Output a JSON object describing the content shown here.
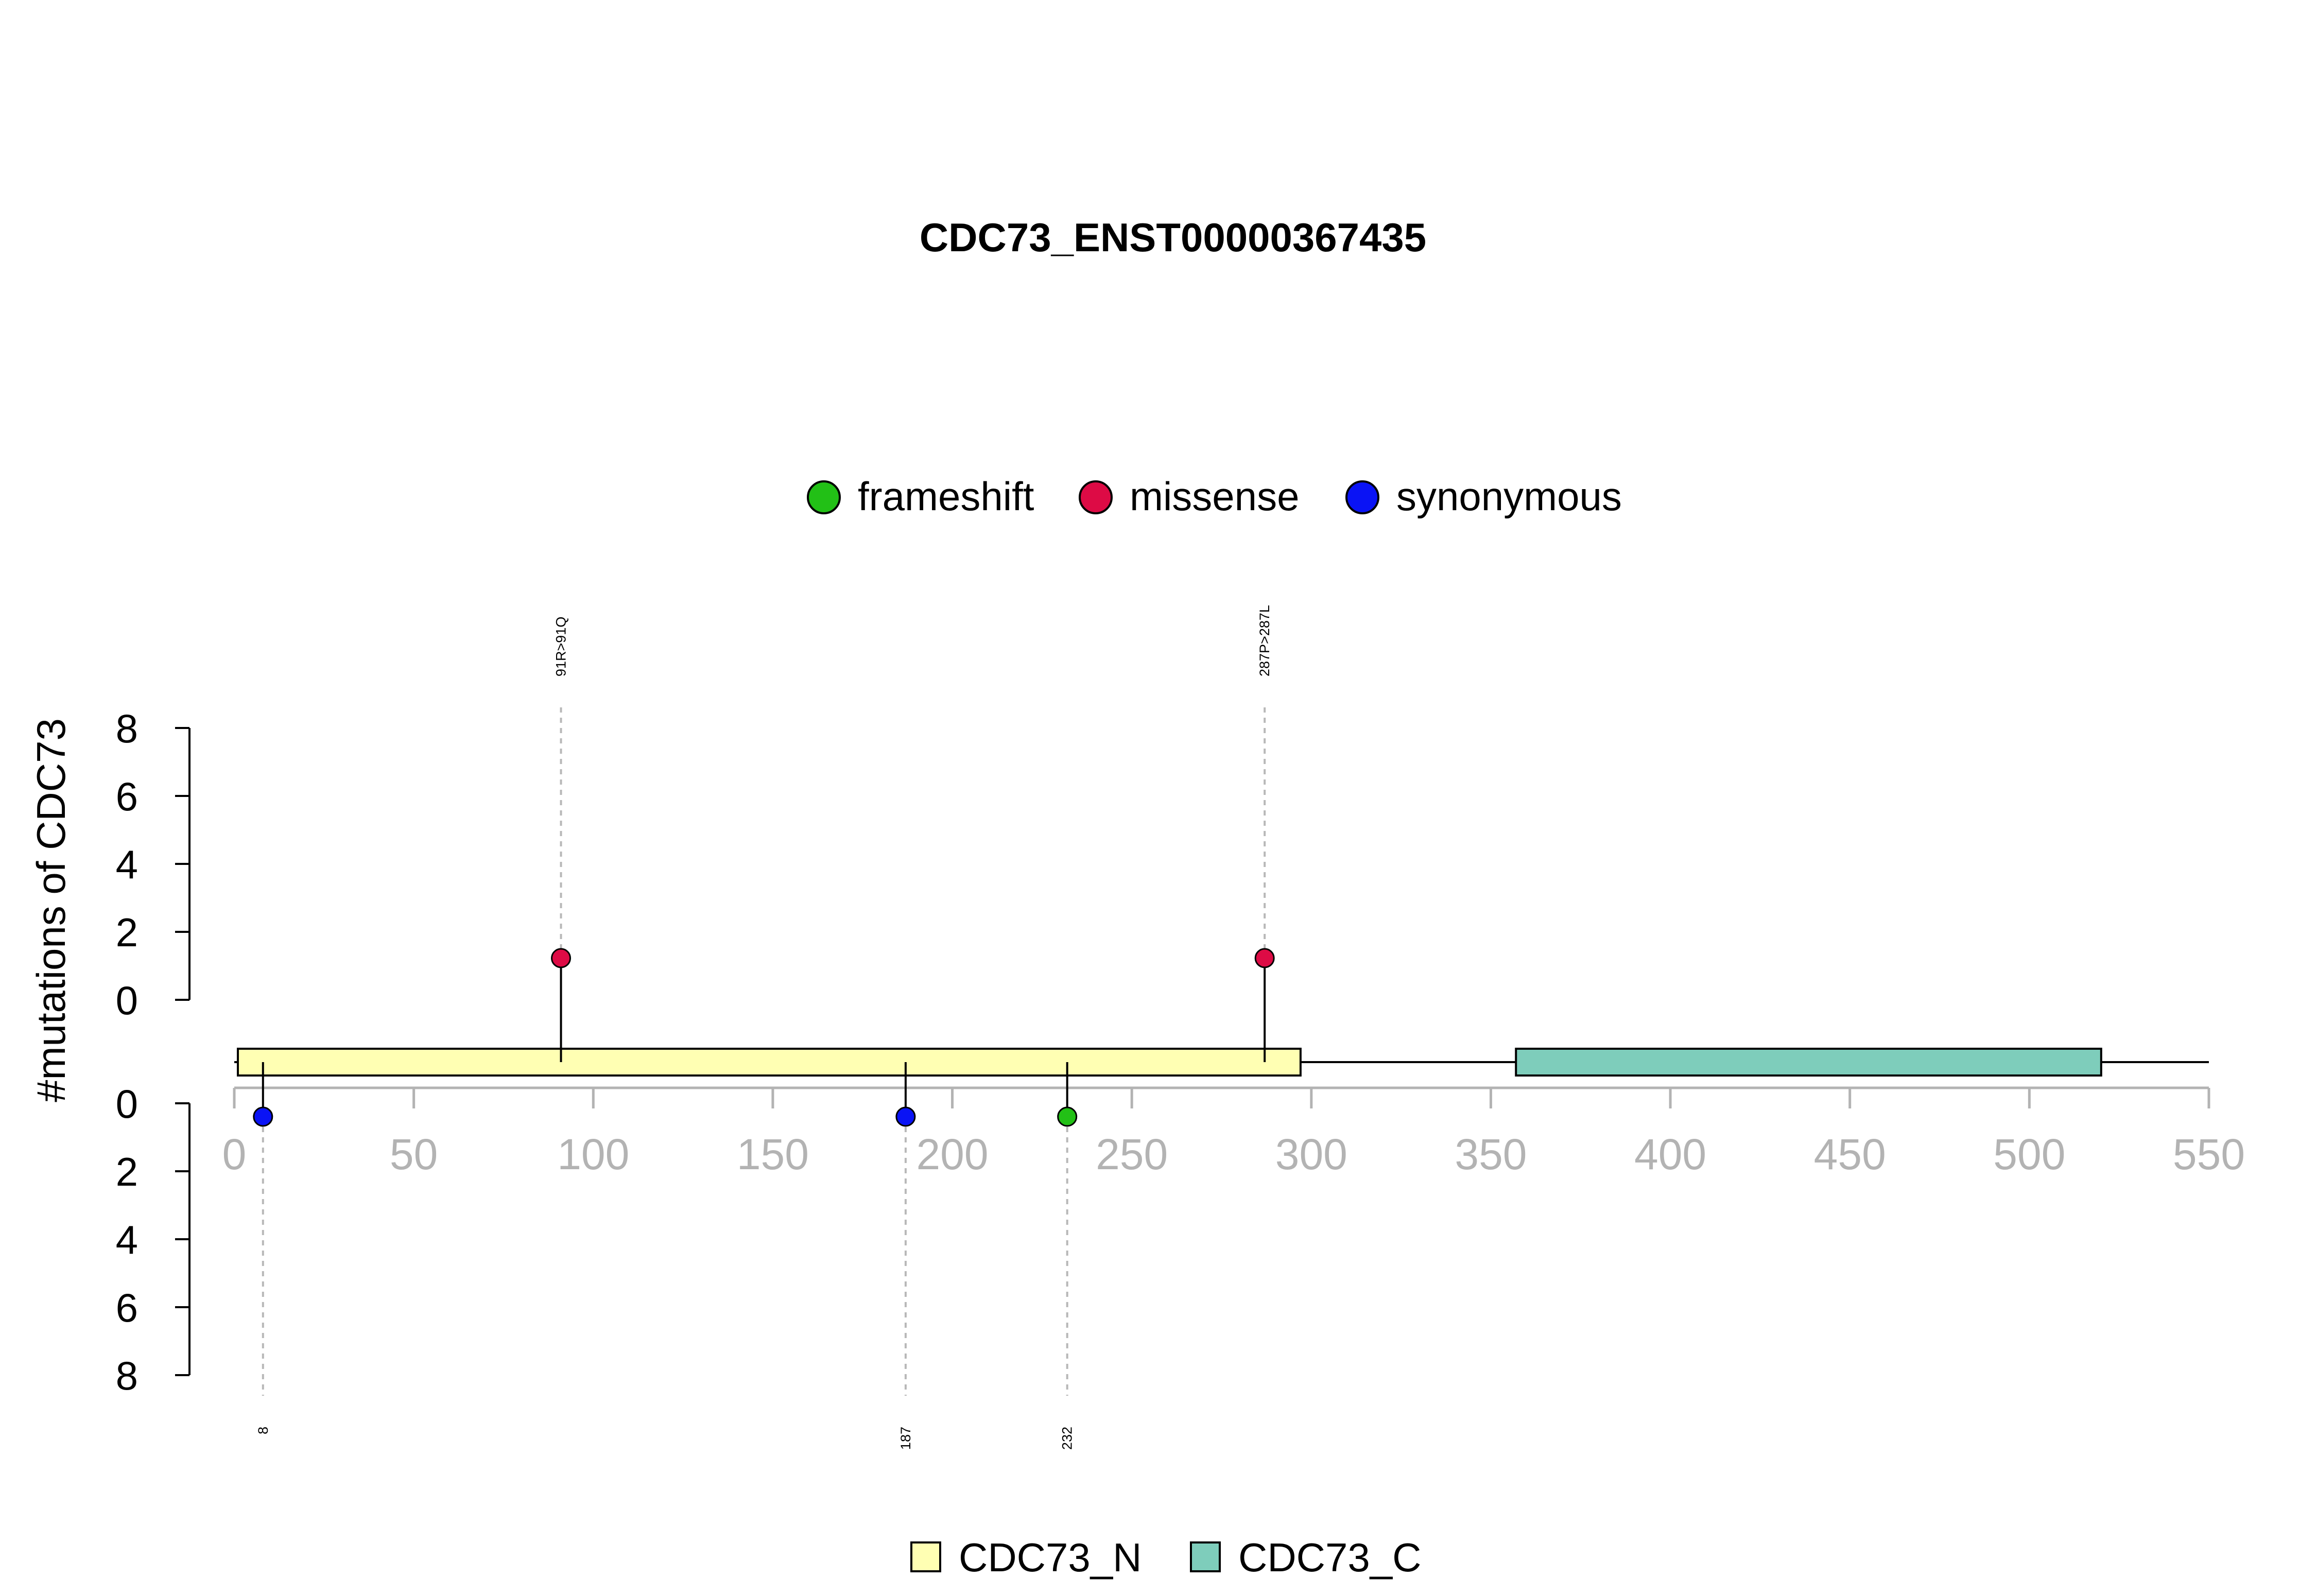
{
  "chart_data": {
    "type": "lollipop",
    "title": "CDC73_ENST00000367435",
    "ylabel": "#mutations of CDC73",
    "xlim": [
      0,
      550
    ],
    "x_ticks": [
      0,
      50,
      100,
      150,
      200,
      250,
      300,
      350,
      400,
      450,
      500,
      550
    ],
    "y_ticks": [
      0,
      2,
      4,
      6,
      8
    ],
    "ylim": [
      0,
      8
    ],
    "protein_length": 550,
    "legend_top": [
      {
        "label": "frameshift",
        "color": "#22c016"
      },
      {
        "label": "missense",
        "color": "#dd0b45"
      },
      {
        "label": "synonymous",
        "color": "#0a13f5"
      }
    ],
    "upper_mutations": [
      {
        "position": 91,
        "count": 1,
        "type": "missense",
        "label": "91R>91Q"
      },
      {
        "position": 287,
        "count": 1,
        "type": "missense",
        "label": "287P>287L"
      }
    ],
    "lower_mutations": [
      {
        "position": 8,
        "count": 1,
        "type": "synonymous",
        "label": "8"
      },
      {
        "position": 187,
        "count": 1,
        "type": "synonymous",
        "label": "187"
      },
      {
        "position": 232,
        "count": 1,
        "type": "frameshift",
        "label": "232"
      }
    ],
    "domains": [
      {
        "name": "CDC73_N",
        "start": 1,
        "end": 297,
        "color": "#ffffb3"
      },
      {
        "name": "CDC73_C",
        "start": 357,
        "end": 520,
        "color": "#7ecdbb"
      }
    ],
    "legend_bottom": [
      {
        "label": "CDC73_N",
        "color": "#ffffb3"
      },
      {
        "label": "CDC73_C",
        "color": "#7ecdbb"
      }
    ]
  }
}
